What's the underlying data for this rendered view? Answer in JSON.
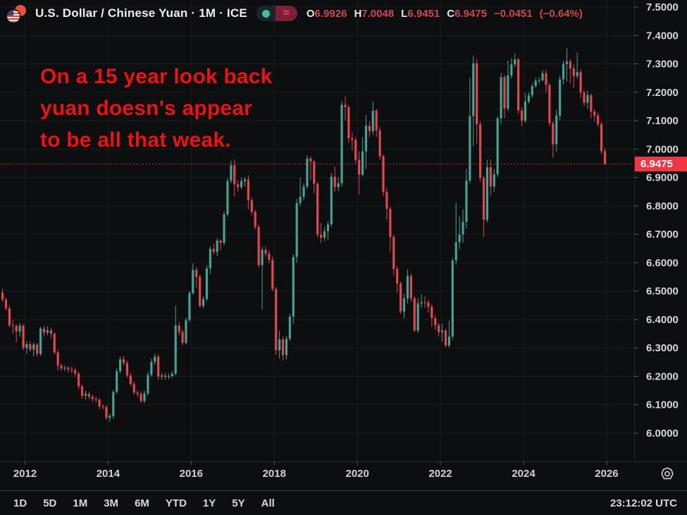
{
  "header": {
    "symbol_title": "U.S. Dollar / Chinese Yuan · 1M · ICE",
    "ohlc": {
      "o_label": "O",
      "o": "6.9926",
      "h_label": "H",
      "h": "7.0048",
      "l_label": "L",
      "l": "6.9451",
      "c_label": "C",
      "c": "6.9475",
      "change": "−0.0451",
      "change_pct": "(−0.64%)"
    },
    "icons": {
      "market_open_dot": "green-dot",
      "delayed_data": "≈",
      "pair_flags": "us-china-flags"
    },
    "colors": {
      "value_red": "#cf4750",
      "pill_crimson": "#7e1f3a",
      "dot_green": "#3fc09e"
    }
  },
  "annotation": {
    "line1": "On a 15 year look back",
    "line2": "yuan doesn's appear",
    "line3": "to be all that weak.",
    "color": "#ea1313"
  },
  "price_axis": {
    "labels": [
      "7.5000",
      "7.4000",
      "7.3000",
      "7.2000",
      "7.1000",
      "7.0000",
      "6.9000",
      "6.8000",
      "6.7000",
      "6.6000",
      "6.5000",
      "6.4000",
      "6.3000",
      "6.2000",
      "6.1000",
      "6.0000"
    ],
    "current_price": "6.9475",
    "tag_color": "#f23645"
  },
  "time_axis": {
    "labels": [
      "2012",
      "2014",
      "2016",
      "2018",
      "2020",
      "2022",
      "2024",
      "2026"
    ]
  },
  "toolbar": {
    "ranges": [
      "1D",
      "5D",
      "1M",
      "3M",
      "6M",
      "YTD",
      "1Y",
      "5Y",
      "All"
    ],
    "clock": "23:12:02 UTC",
    "icons": {
      "settings": "gear"
    }
  },
  "chart_data": {
    "type": "candlestick",
    "title": "U.S. Dollar / Chinese Yuan, 1M, ICE",
    "interval": "1M",
    "x_start": {
      "year": 2011,
      "month": 6
    },
    "xticks": [
      2012,
      2014,
      2016,
      2018,
      2020,
      2022,
      2024,
      2026
    ],
    "ylim": [
      6.0,
      7.5
    ],
    "ytick_step": 0.1,
    "grid": true,
    "up_color": "#46a094",
    "down_color": "#e1474f",
    "last_price": 6.9475,
    "last_price_line_color": "#f23645",
    "candles": [
      [
        6.495,
        6.508,
        6.462,
        6.47
      ],
      [
        6.47,
        6.478,
        6.432,
        6.44
      ],
      [
        6.44,
        6.449,
        6.372,
        6.38
      ],
      [
        6.38,
        6.398,
        6.349,
        6.378
      ],
      [
        6.378,
        6.383,
        6.32,
        6.358
      ],
      [
        6.358,
        6.388,
        6.34,
        6.378
      ],
      [
        6.378,
        6.385,
        6.292,
        6.3
      ],
      [
        6.3,
        6.324,
        6.279,
        6.313
      ],
      [
        6.313,
        6.323,
        6.287,
        6.294
      ],
      [
        6.294,
        6.32,
        6.27,
        6.312
      ],
      [
        6.312,
        6.318,
        6.27,
        6.279
      ],
      [
        6.279,
        6.375,
        6.272,
        6.368
      ],
      [
        6.368,
        6.378,
        6.34,
        6.354
      ],
      [
        6.354,
        6.376,
        6.345,
        6.362
      ],
      [
        6.362,
        6.37,
        6.334,
        6.35
      ],
      [
        6.35,
        6.356,
        6.278,
        6.284
      ],
      [
        6.284,
        6.292,
        6.221,
        6.238
      ],
      [
        6.238,
        6.246,
        6.22,
        6.228
      ],
      [
        6.228,
        6.238,
        6.218,
        6.23
      ],
      [
        6.23,
        6.236,
        6.212,
        6.225
      ],
      [
        6.225,
        6.234,
        6.21,
        6.222
      ],
      [
        6.222,
        6.228,
        6.198,
        6.21
      ],
      [
        6.21,
        6.216,
        6.155,
        6.165
      ],
      [
        6.165,
        6.172,
        6.121,
        6.132
      ],
      [
        6.132,
        6.15,
        6.118,
        6.138
      ],
      [
        6.138,
        6.146,
        6.12,
        6.128
      ],
      [
        6.128,
        6.136,
        6.11,
        6.12
      ],
      [
        6.12,
        6.13,
        6.108,
        6.118
      ],
      [
        6.118,
        6.124,
        6.083,
        6.094
      ],
      [
        6.094,
        6.102,
        6.082,
        6.092
      ],
      [
        6.092,
        6.098,
        6.047,
        6.054
      ],
      [
        6.054,
        6.068,
        6.04,
        6.06
      ],
      [
        6.06,
        6.152,
        6.05,
        6.145
      ],
      [
        6.145,
        6.228,
        6.138,
        6.218
      ],
      [
        6.218,
        6.27,
        6.21,
        6.26
      ],
      [
        6.26,
        6.272,
        6.238,
        6.247
      ],
      [
        6.247,
        6.255,
        6.195,
        6.203
      ],
      [
        6.203,
        6.212,
        6.165,
        6.173
      ],
      [
        6.173,
        6.182,
        6.136,
        6.143
      ],
      [
        6.143,
        6.152,
        6.128,
        6.138
      ],
      [
        6.138,
        6.146,
        6.106,
        6.113
      ],
      [
        6.113,
        6.15,
        6.105,
        6.14
      ],
      [
        6.14,
        6.215,
        6.132,
        6.205
      ],
      [
        6.205,
        6.262,
        6.198,
        6.251
      ],
      [
        6.251,
        6.28,
        6.24,
        6.269
      ],
      [
        6.269,
        6.278,
        6.188,
        6.199
      ],
      [
        6.199,
        6.212,
        6.188,
        6.203
      ],
      [
        6.203,
        6.212,
        6.19,
        6.198
      ],
      [
        6.198,
        6.21,
        6.19,
        6.201
      ],
      [
        6.201,
        6.218,
        6.195,
        6.209
      ],
      [
        6.209,
        6.449,
        6.203,
        6.379
      ],
      [
        6.379,
        6.392,
        6.345,
        6.356
      ],
      [
        6.356,
        6.365,
        6.31,
        6.318
      ],
      [
        6.318,
        6.406,
        6.312,
        6.398
      ],
      [
        6.398,
        6.5,
        6.392,
        6.493
      ],
      [
        6.493,
        6.598,
        6.488,
        6.575
      ],
      [
        6.575,
        6.584,
        6.512,
        6.55
      ],
      [
        6.55,
        6.558,
        6.442,
        6.448
      ],
      [
        6.448,
        6.482,
        6.44,
        6.472
      ],
      [
        6.472,
        6.59,
        6.465,
        6.58
      ],
      [
        6.58,
        6.658,
        6.56,
        6.649
      ],
      [
        6.649,
        6.666,
        6.63,
        6.638
      ],
      [
        6.638,
        6.688,
        6.624,
        6.678
      ],
      [
        6.678,
        6.682,
        6.644,
        6.67
      ],
      [
        6.67,
        6.78,
        6.662,
        6.77
      ],
      [
        6.77,
        6.898,
        6.762,
        6.888
      ],
      [
        6.888,
        6.96,
        6.88,
        6.943
      ],
      [
        6.943,
        6.964,
        6.832,
        6.876
      ],
      [
        6.876,
        6.89,
        6.85,
        6.866
      ],
      [
        6.866,
        6.9,
        6.858,
        6.887
      ],
      [
        6.887,
        6.902,
        6.868,
        6.893
      ],
      [
        6.893,
        6.908,
        6.788,
        6.82
      ],
      [
        6.82,
        6.83,
        6.768,
        6.779
      ],
      [
        6.779,
        6.786,
        6.718,
        6.726
      ],
      [
        6.726,
        6.734,
        6.584,
        6.592
      ],
      [
        6.592,
        6.656,
        6.435,
        6.645
      ],
      [
        6.645,
        6.658,
        6.62,
        6.632
      ],
      [
        6.632,
        6.644,
        6.598,
        6.61
      ],
      [
        6.61,
        6.622,
        6.5,
        6.507
      ],
      [
        6.507,
        6.514,
        6.276,
        6.292
      ],
      [
        6.292,
        6.36,
        6.262,
        6.33
      ],
      [
        6.33,
        6.34,
        6.255,
        6.275
      ],
      [
        6.275,
        6.342,
        6.26,
        6.332
      ],
      [
        6.332,
        6.42,
        6.325,
        6.41
      ],
      [
        6.41,
        6.63,
        6.385,
        6.62
      ],
      [
        6.62,
        6.824,
        6.6,
        6.81
      ],
      [
        6.81,
        6.9,
        6.8,
        6.832
      ],
      [
        6.832,
        6.88,
        6.82,
        6.868
      ],
      [
        6.868,
        6.978,
        6.86,
        6.967
      ],
      [
        6.967,
        6.975,
        6.89,
        6.956
      ],
      [
        6.956,
        6.962,
        6.844,
        6.878
      ],
      [
        6.878,
        6.884,
        6.69,
        6.699
      ],
      [
        6.699,
        6.74,
        6.67,
        6.688
      ],
      [
        6.688,
        6.726,
        6.676,
        6.711
      ],
      [
        6.711,
        6.746,
        6.68,
        6.735
      ],
      [
        6.735,
        6.916,
        6.726,
        6.903
      ],
      [
        6.903,
        6.938,
        6.85,
        6.866
      ],
      [
        6.866,
        6.902,
        6.852,
        6.88
      ],
      [
        6.88,
        7.168,
        6.868,
        7.156
      ],
      [
        7.156,
        7.185,
        7.1,
        7.148
      ],
      [
        7.148,
        7.155,
        7.022,
        7.038
      ],
      [
        7.038,
        7.058,
        6.996,
        7.032
      ],
      [
        7.032,
        7.042,
        6.95,
        6.962
      ],
      [
        6.962,
        6.992,
        6.84,
        6.91
      ],
      [
        6.91,
        7.042,
        6.905,
        6.992
      ],
      [
        6.992,
        7.12,
        6.93,
        7.082
      ],
      [
        7.082,
        7.098,
        7.042,
        7.063
      ],
      [
        7.063,
        7.168,
        7.05,
        7.135
      ],
      [
        7.135,
        7.142,
        7.042,
        7.066
      ],
      [
        7.066,
        7.078,
        6.962,
        6.975
      ],
      [
        6.975,
        6.982,
        6.835,
        6.849
      ],
      [
        6.849,
        6.862,
        6.752,
        6.79
      ],
      [
        6.79,
        6.798,
        6.64,
        6.691
      ],
      [
        6.691,
        6.698,
        6.555,
        6.578
      ],
      [
        6.578,
        6.588,
        6.494,
        6.527
      ],
      [
        6.527,
        6.534,
        6.42,
        6.428
      ],
      [
        6.428,
        6.49,
        6.404,
        6.474
      ],
      [
        6.474,
        6.576,
        6.456,
        6.553
      ],
      [
        6.553,
        6.562,
        6.462,
        6.475
      ],
      [
        6.475,
        6.482,
        6.356,
        6.361
      ],
      [
        6.361,
        6.474,
        6.354,
        6.457
      ],
      [
        6.457,
        6.49,
        6.442,
        6.461
      ],
      [
        6.461,
        6.482,
        6.441,
        6.46
      ],
      [
        6.46,
        6.47,
        6.425,
        6.445
      ],
      [
        6.445,
        6.454,
        6.375,
        6.405
      ],
      [
        6.405,
        6.416,
        6.364,
        6.38
      ],
      [
        6.38,
        6.388,
        6.34,
        6.356
      ],
      [
        6.356,
        6.386,
        6.322,
        6.361
      ],
      [
        6.361,
        6.368,
        6.302,
        6.309
      ],
      [
        6.309,
        6.396,
        6.3,
        6.34
      ],
      [
        6.34,
        6.616,
        6.33,
        6.608
      ],
      [
        6.608,
        6.812,
        6.592,
        6.672
      ],
      [
        6.672,
        6.762,
        6.648,
        6.699
      ],
      [
        6.699,
        6.788,
        6.67,
        6.744
      ],
      [
        6.744,
        6.93,
        6.72,
        6.889
      ],
      [
        6.889,
        7.25,
        6.88,
        7.116
      ],
      [
        7.116,
        7.328,
        7.01,
        7.302
      ],
      [
        7.302,
        7.318,
        7.02,
        7.087
      ],
      [
        7.087,
        7.098,
        6.886,
        6.898
      ],
      [
        6.898,
        6.906,
        6.69,
        6.751
      ],
      [
        6.751,
        6.962,
        6.742,
        6.936
      ],
      [
        6.936,
        6.964,
        6.838,
        6.868
      ],
      [
        6.868,
        6.93,
        6.85,
        6.912
      ],
      [
        6.912,
        7.116,
        6.902,
        7.108
      ],
      [
        7.108,
        7.268,
        7.088,
        7.253
      ],
      [
        7.253,
        7.262,
        7.108,
        7.143
      ],
      [
        7.143,
        7.312,
        7.134,
        7.259
      ],
      [
        7.259,
        7.32,
        7.248,
        7.298
      ],
      [
        7.298,
        7.338,
        7.288,
        7.316
      ],
      [
        7.316,
        7.322,
        7.124,
        7.136
      ],
      [
        7.136,
        7.146,
        7.08,
        7.1
      ],
      [
        7.1,
        7.198,
        7.092,
        7.167
      ],
      [
        7.167,
        7.2,
        7.16,
        7.189
      ],
      [
        7.189,
        7.232,
        7.18,
        7.222
      ],
      [
        7.222,
        7.252,
        7.216,
        7.241
      ],
      [
        7.241,
        7.252,
        7.228,
        7.242
      ],
      [
        7.242,
        7.278,
        7.238,
        7.267
      ],
      [
        7.267,
        7.278,
        7.198,
        7.226
      ],
      [
        7.226,
        7.232,
        7.08,
        7.091
      ],
      [
        7.091,
        7.098,
        6.97,
        7.017
      ],
      [
        7.017,
        7.138,
        6.99,
        7.118
      ],
      [
        7.118,
        7.258,
        7.1,
        7.245
      ],
      [
        7.245,
        7.312,
        7.228,
        7.299
      ],
      [
        7.299,
        7.355,
        7.238,
        7.308
      ],
      [
        7.308,
        7.318,
        7.232,
        7.284
      ],
      [
        7.284,
        7.298,
        7.216,
        7.257
      ],
      [
        7.257,
        7.34,
        7.248,
        7.271
      ],
      [
        7.271,
        7.282,
        7.178,
        7.199
      ],
      [
        7.199,
        7.208,
        7.152,
        7.163
      ],
      [
        7.163,
        7.206,
        7.142,
        7.19
      ],
      [
        7.19,
        7.196,
        7.108,
        7.132
      ],
      [
        7.132,
        7.142,
        7.096,
        7.118
      ],
      [
        7.118,
        7.128,
        7.078,
        7.088
      ],
      [
        7.088,
        7.096,
        6.983,
        6.9926
      ],
      [
        6.9926,
        7.0048,
        6.9451,
        6.9475
      ]
    ]
  }
}
